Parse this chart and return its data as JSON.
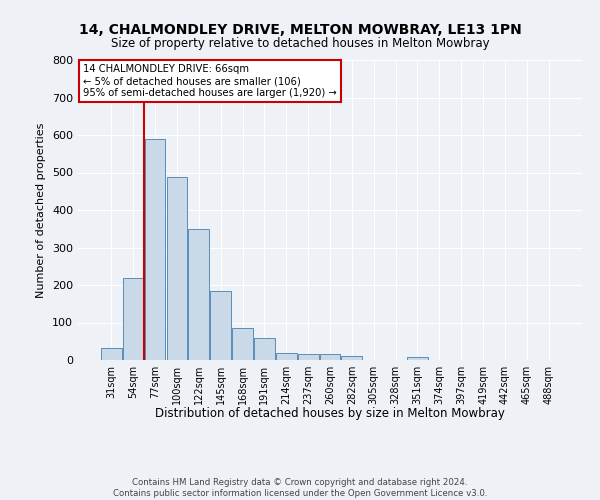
{
  "title": "14, CHALMONDLEY DRIVE, MELTON MOWBRAY, LE13 1PN",
  "subtitle": "Size of property relative to detached houses in Melton Mowbray",
  "xlabel": "Distribution of detached houses by size in Melton Mowbray",
  "ylabel": "Number of detached properties",
  "bar_values": [
    33,
    218,
    590,
    488,
    350,
    185,
    85,
    58,
    20,
    15,
    15,
    10,
    0,
    0,
    8,
    0,
    0,
    0,
    0,
    0,
    0
  ],
  "bar_labels": [
    "31sqm",
    "54sqm",
    "77sqm",
    "100sqm",
    "122sqm",
    "145sqm",
    "168sqm",
    "191sqm",
    "214sqm",
    "237sqm",
    "260sqm",
    "282sqm",
    "305sqm",
    "328sqm",
    "351sqm",
    "374sqm",
    "397sqm",
    "419sqm",
    "442sqm",
    "465sqm",
    "488sqm"
  ],
  "bar_color": "#c9d9e8",
  "bar_edge_color": "#5b8db8",
  "vline_x": 1.5,
  "vline_color": "#cc0000",
  "annotation_text": "14 CHALMONDLEY DRIVE: 66sqm\n← 5% of detached houses are smaller (106)\n95% of semi-detached houses are larger (1,920) →",
  "annotation_box_color": "#ffffff",
  "annotation_box_edge": "#cc0000",
  "ylim": [
    0,
    800
  ],
  "yticks": [
    0,
    100,
    200,
    300,
    400,
    500,
    600,
    700,
    800
  ],
  "footer_line1": "Contains HM Land Registry data © Crown copyright and database right 2024.",
  "footer_line2": "Contains public sector information licensed under the Open Government Licence v3.0.",
  "bg_color": "#eef2f7",
  "title_fontsize": 10,
  "subtitle_fontsize": 8.5,
  "xlabel_fontsize": 8.5,
  "ylabel_fontsize": 8
}
